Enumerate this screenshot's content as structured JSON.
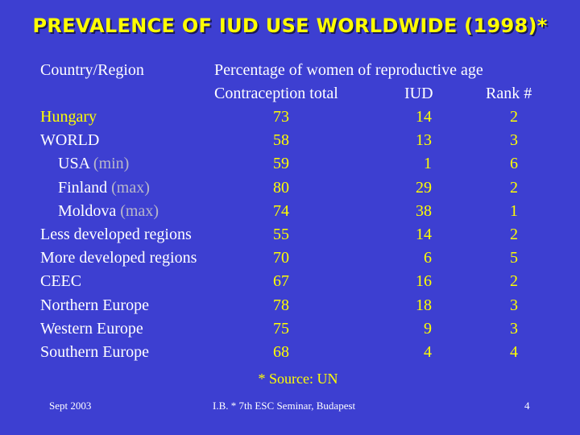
{
  "title": "PREVALENCE OF IUD USE WORLDWIDE (1998)*",
  "header": {
    "col_region": "Country/Region",
    "group_label": "Percentage of women of reproductive age",
    "col_total": "Contraception total",
    "col_iud": "IUD",
    "col_rank": "Rank #"
  },
  "rows": [
    {
      "name": "Hungary",
      "note": "",
      "total": "73",
      "iud": "14",
      "rank": "2"
    },
    {
      "name": "WORLD",
      "note": "",
      "total": "58",
      "iud": "13",
      "rank": "3"
    },
    {
      "name": "USA",
      "note": "(min)",
      "total": "59",
      "iud": "1",
      "rank": "6"
    },
    {
      "name": "Finland",
      "note": "(max)",
      "total": "80",
      "iud": "29",
      "rank": "2"
    },
    {
      "name": "Moldova",
      "note": "(max)",
      "total": "74",
      "iud": "38",
      "rank": "1"
    },
    {
      "name": "Less developed regions",
      "note": "",
      "total": "55",
      "iud": "14",
      "rank": "2"
    },
    {
      "name": "More developed regions",
      "note": "",
      "total": "70",
      "iud": "6",
      "rank": "5"
    },
    {
      "name": "CEEC",
      "note": "",
      "total": "67",
      "iud": "16",
      "rank": "2"
    },
    {
      "name": "Northern Europe",
      "note": "",
      "total": "78",
      "iud": "18",
      "rank": "3"
    },
    {
      "name": "Western Europe",
      "note": "",
      "total": "75",
      "iud": "9",
      "rank": "3"
    },
    {
      "name": "Southern Europe",
      "note": "",
      "total": "68",
      "iud": "4",
      "rank": "4"
    }
  ],
  "source": "* Source: UN",
  "footer": {
    "date": "Sept 2003",
    "event": "I.B. * 7th ESC Seminar, Budapest",
    "page": "4"
  }
}
